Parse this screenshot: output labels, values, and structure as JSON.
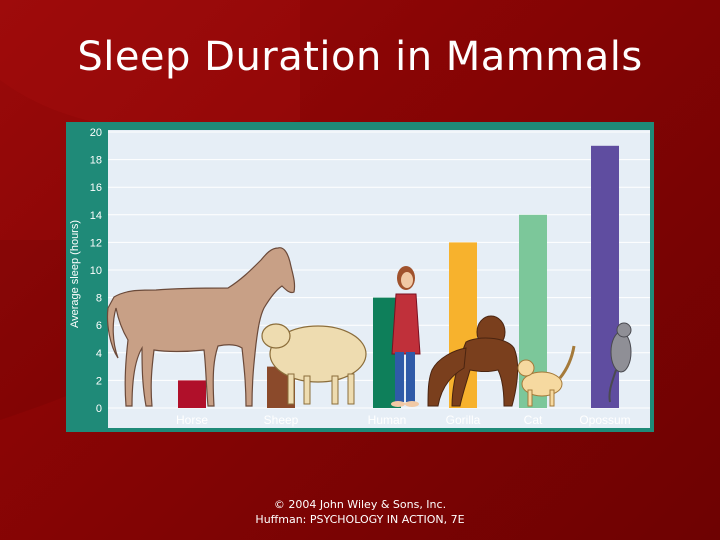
{
  "slide": {
    "title": "Sleep Duration in Mammals",
    "footer_line1": "© 2004 John Wiley & Sons, Inc.",
    "footer_line2": "Huffman: PSYCHOLOGY IN ACTION, 7E"
  },
  "colors": {
    "background": "#8a0505",
    "plot_bg": "#e6eef6",
    "frame": "#1f8a78"
  },
  "chart_data": {
    "type": "bar",
    "title": "",
    "xlabel": "",
    "ylabel": "Average sleep (hours)",
    "categories": [
      "Horse",
      "Sheep",
      "Human",
      "Gorilla",
      "Cat",
      "Opossum"
    ],
    "values": [
      2,
      3,
      8,
      12,
      14,
      19
    ],
    "colors": [
      "#b0102a",
      "#8b4a2b",
      "#0e7f5a",
      "#f7b22d",
      "#7cc79a",
      "#5f4da0"
    ],
    "ylim": [
      0,
      20
    ],
    "yticks": [
      0,
      2,
      4,
      6,
      8,
      10,
      12,
      14,
      16,
      18,
      20
    ],
    "grid": true,
    "legend": "none",
    "illustrations": [
      "horse-icon",
      "sheep-icon",
      "woman-icon",
      "gorilla-icon",
      "cat-icon",
      "opossum-icon"
    ]
  }
}
